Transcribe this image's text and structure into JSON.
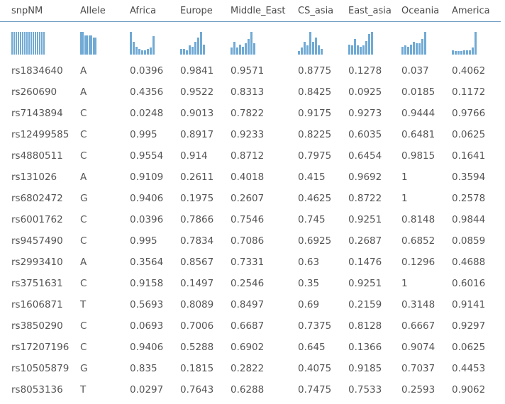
{
  "columns": [
    "snpNM",
    "Allele",
    "Africa",
    "Europe",
    "Middle_East",
    "CS_asia",
    "East_asia",
    "Oceania",
    "America"
  ],
  "spark_colors": {
    "bar": "#71aad4",
    "header_rule": "#6e9cc2"
  },
  "sparklines": {
    "snpNM": [
      1,
      1,
      1,
      1,
      1,
      1,
      1,
      1,
      1,
      1,
      1,
      1,
      1,
      1,
      1,
      1
    ],
    "Allele": [
      1,
      0.85,
      0.85,
      0.75
    ],
    "Africa": [
      1,
      0.55,
      0.35,
      0.25,
      0.2,
      0.2,
      0.25,
      0.3,
      0.8
    ],
    "Europe": [
      0.25,
      0.25,
      0.2,
      0.4,
      0.35,
      0.55,
      0.75,
      1,
      0.45
    ],
    "Middle_East": [
      0.3,
      0.55,
      0.3,
      0.45,
      0.35,
      0.5,
      0.7,
      1,
      0.5
    ],
    "CS_asia": [
      0.15,
      0.3,
      0.55,
      0.4,
      1,
      0.55,
      0.75,
      0.4,
      0.25
    ],
    "East_asia": [
      0.45,
      0.4,
      0.7,
      0.4,
      0.35,
      0.4,
      0.6,
      0.9,
      1
    ],
    "Oceania": [
      0.35,
      0.4,
      0.35,
      0.45,
      0.55,
      0.5,
      0.5,
      0.7,
      1
    ],
    "America": [
      0.2,
      0.15,
      0.15,
      0.15,
      0.2,
      0.2,
      0.2,
      0.3,
      1
    ]
  },
  "rows": [
    [
      "rs1834640",
      "A",
      "0.0396",
      "0.9841",
      "0.9571",
      "0.8775",
      "0.1278",
      "0.037",
      "0.4062"
    ],
    [
      "rs260690",
      "A",
      "0.4356",
      "0.9522",
      "0.8313",
      "0.8425",
      "0.0925",
      "0.0185",
      "0.1172"
    ],
    [
      "rs7143894",
      "C",
      "0.0248",
      "0.9013",
      "0.7822",
      "0.9175",
      "0.9273",
      "0.9444",
      "0.9766"
    ],
    [
      "rs12499585",
      "C",
      "0.995",
      "0.8917",
      "0.9233",
      "0.8225",
      "0.6035",
      "0.6481",
      "0.0625"
    ],
    [
      "rs4880511",
      "C",
      "0.9554",
      "0.914",
      "0.8712",
      "0.7975",
      "0.6454",
      "0.9815",
      "0.1641"
    ],
    [
      "rs131026",
      "A",
      "0.9109",
      "0.2611",
      "0.4018",
      "0.415",
      "0.9692",
      "1",
      "0.3594"
    ],
    [
      "rs6802472",
      "G",
      "0.9406",
      "0.1975",
      "0.2607",
      "0.4625",
      "0.8722",
      "1",
      "0.2578"
    ],
    [
      "rs6001762",
      "C",
      "0.0396",
      "0.7866",
      "0.7546",
      "0.745",
      "0.9251",
      "0.8148",
      "0.9844"
    ],
    [
      "rs9457490",
      "C",
      "0.995",
      "0.7834",
      "0.7086",
      "0.6925",
      "0.2687",
      "0.6852",
      "0.0859"
    ],
    [
      "rs2993410",
      "A",
      "0.3564",
      "0.8567",
      "0.7331",
      "0.63",
      "0.1476",
      "0.1296",
      "0.4688"
    ],
    [
      "rs3751631",
      "C",
      "0.9158",
      "0.1497",
      "0.2546",
      "0.35",
      "0.9251",
      "1",
      "0.6016"
    ],
    [
      "rs1606871",
      "T",
      "0.5693",
      "0.8089",
      "0.8497",
      "0.69",
      "0.2159",
      "0.3148",
      "0.9141"
    ],
    [
      "rs3850290",
      "C",
      "0.0693",
      "0.7006",
      "0.6687",
      "0.7375",
      "0.8128",
      "0.6667",
      "0.9297"
    ],
    [
      "rs17207196",
      "C",
      "0.9406",
      "0.5288",
      "0.6902",
      "0.645",
      "0.1366",
      "0.9074",
      "0.0625"
    ],
    [
      "rs10505879",
      "G",
      "0.835",
      "0.1815",
      "0.2822",
      "0.4075",
      "0.9185",
      "0.7037",
      "0.4453"
    ],
    [
      "rs8053136",
      "T",
      "0.0297",
      "0.7643",
      "0.6288",
      "0.7475",
      "0.7533",
      "0.2593",
      "0.9062"
    ]
  ]
}
